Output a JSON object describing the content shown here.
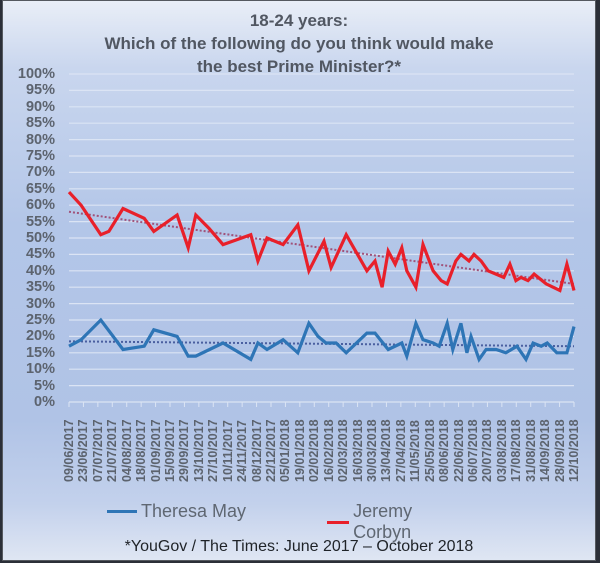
{
  "chart_data": {
    "type": "line",
    "title": "18-24 years:",
    "subtitle_line1": "Which of the following do you think would make",
    "subtitle_line2": "the best Prime Minister?*",
    "xlabel": "",
    "ylabel": "",
    "ylim": [
      0,
      100
    ],
    "grid": true,
    "legend_position": "bottom",
    "y_ticks": [
      "100%",
      "95%",
      "90%",
      "85%",
      "80%",
      "75%",
      "70%",
      "65%",
      "60%",
      "55%",
      "50%",
      "45%",
      "40%",
      "35%",
      "30%",
      "25%",
      "20%",
      "15%",
      "10%",
      "5%",
      "0%"
    ],
    "x_tick_labels": [
      "09/06/2017",
      "23/06/2017",
      "07/07/2017",
      "21/07/2017",
      "04/08/2017",
      "18/08/2017",
      "01/09/2017",
      "15/09/2017",
      "29/09/2017",
      "13/10/2017",
      "27/10/2017",
      "10/11/2017",
      "24/11/2017",
      "08/12/2017",
      "22/12/2017",
      "05/01/2018",
      "19/01/2018",
      "02/02/2018",
      "16/02/2018",
      "02/03/2018",
      "16/03/2018",
      "30/03/2018",
      "13/04/2018",
      "27/04/2018",
      "11/05/2018",
      "25/05/2018",
      "08/06/2018",
      "22/06/2018",
      "06/07/2018",
      "20/07/2018",
      "03/08/2018",
      "17/08/2018",
      "31/08/2018",
      "14/09/2018",
      "28/09/2018",
      "12/10/2018"
    ],
    "series": [
      {
        "name": "Theresa May",
        "color": "#2e75b6",
        "points_x_frac": [
          0,
          0.024,
          0.063,
          0.107,
          0.149,
          0.168,
          0.214,
          0.236,
          0.251,
          0.305,
          0.36,
          0.374,
          0.392,
          0.424,
          0.453,
          0.475,
          0.493,
          0.509,
          0.529,
          0.549,
          0.59,
          0.606,
          0.632,
          0.659,
          0.669,
          0.687,
          0.701,
          0.721,
          0.733,
          0.749,
          0.76,
          0.776,
          0.788,
          0.796,
          0.812,
          0.826,
          0.846,
          0.865,
          0.887,
          0.905,
          0.919,
          0.935,
          0.947,
          0.966,
          0.986,
          1.0
        ],
        "values": [
          17,
          19,
          25,
          16,
          17,
          22,
          20,
          14,
          14,
          18,
          13,
          18,
          16,
          19,
          15,
          24,
          20,
          18,
          18,
          15,
          21,
          21,
          16,
          18,
          14,
          24,
          19,
          18,
          17,
          24,
          16,
          24,
          15,
          20,
          13,
          16,
          16,
          15,
          17,
          13,
          18,
          17,
          18,
          15,
          15,
          23
        ],
        "trend": [
          18.5,
          17
        ]
      },
      {
        "name": "Jeremy Corbyn",
        "color": "#e8202a",
        "points_x_frac": [
          0,
          0.024,
          0.063,
          0.079,
          0.107,
          0.149,
          0.168,
          0.214,
          0.236,
          0.251,
          0.277,
          0.305,
          0.36,
          0.374,
          0.392,
          0.424,
          0.453,
          0.475,
          0.505,
          0.519,
          0.549,
          0.59,
          0.606,
          0.62,
          0.632,
          0.646,
          0.659,
          0.669,
          0.687,
          0.701,
          0.721,
          0.737,
          0.749,
          0.766,
          0.776,
          0.792,
          0.802,
          0.816,
          0.83,
          0.861,
          0.873,
          0.885,
          0.895,
          0.909,
          0.921,
          0.945,
          0.972,
          0.986,
          1.0
        ],
        "values": [
          64,
          60,
          51,
          52,
          59,
          56,
          52,
          57,
          47,
          57,
          53,
          48,
          51,
          43,
          50,
          48,
          54,
          40,
          49,
          41,
          51,
          40,
          43,
          35,
          46,
          42,
          47,
          40,
          35,
          48,
          40,
          37,
          36,
          43,
          45,
          43,
          45,
          43,
          40,
          38,
          42,
          37,
          38,
          37,
          39,
          36,
          34,
          42,
          34
        ],
        "trend": [
          58,
          36
        ]
      }
    ]
  },
  "legend": {
    "items": [
      {
        "label": "Theresa May",
        "color": "#2e75b6"
      },
      {
        "label": "Jeremy Corbyn",
        "color": "#e8202a"
      }
    ]
  },
  "footer": {
    "source": "*YouGov / The Times: June 2017 – October 2018"
  }
}
